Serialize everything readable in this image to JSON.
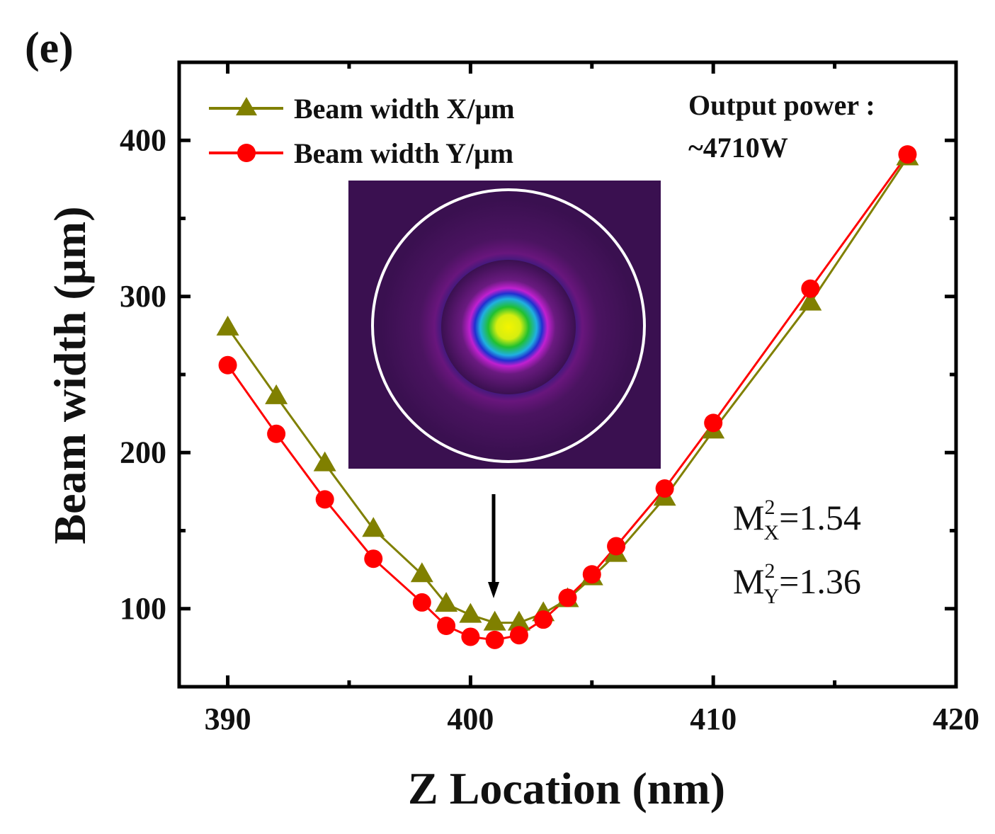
{
  "panel_label": "(e)",
  "chart_data": {
    "type": "line",
    "title": "",
    "xlabel": "Z Location (nm)",
    "ylabel": "Beam width (μm)",
    "xlim": [
      388,
      420
    ],
    "ylim": [
      50,
      450
    ],
    "x_ticks": [
      390,
      400,
      410,
      420
    ],
    "y_ticks": [
      100,
      200,
      300,
      400
    ],
    "grid": false,
    "legend_position": "top-left",
    "series": [
      {
        "name": "Beam width X/μm",
        "marker": "triangle",
        "color": "#808000",
        "x": [
          390,
          392,
          394,
          396,
          398,
          399,
          400,
          401,
          402,
          403,
          404,
          405,
          406,
          408,
          410,
          414,
          418
        ],
        "y": [
          280,
          236,
          193,
          151,
          122,
          103,
          96,
          91,
          91,
          97,
          106,
          120,
          135,
          171,
          214,
          296,
          389
        ]
      },
      {
        "name": "Beam width Y/μm",
        "marker": "circle",
        "color": "#ff0000",
        "x": [
          390,
          392,
          394,
          396,
          398,
          399,
          400,
          401,
          402,
          403,
          404,
          405,
          406,
          408,
          410,
          414,
          418
        ],
        "y": [
          256,
          212,
          170,
          132,
          104,
          89,
          82,
          80,
          83,
          93,
          107,
          122,
          140,
          177,
          219,
          305,
          391
        ]
      }
    ],
    "annotations": {
      "power_label": "Output power :",
      "power_value": "~4710W",
      "m2x_label": "M",
      "m2x_sub": "X",
      "m2x_value": "=1.54",
      "m2y_label": "M",
      "m2y_sub": "Y",
      "m2y_value": "=1.36",
      "sup": "2"
    }
  }
}
